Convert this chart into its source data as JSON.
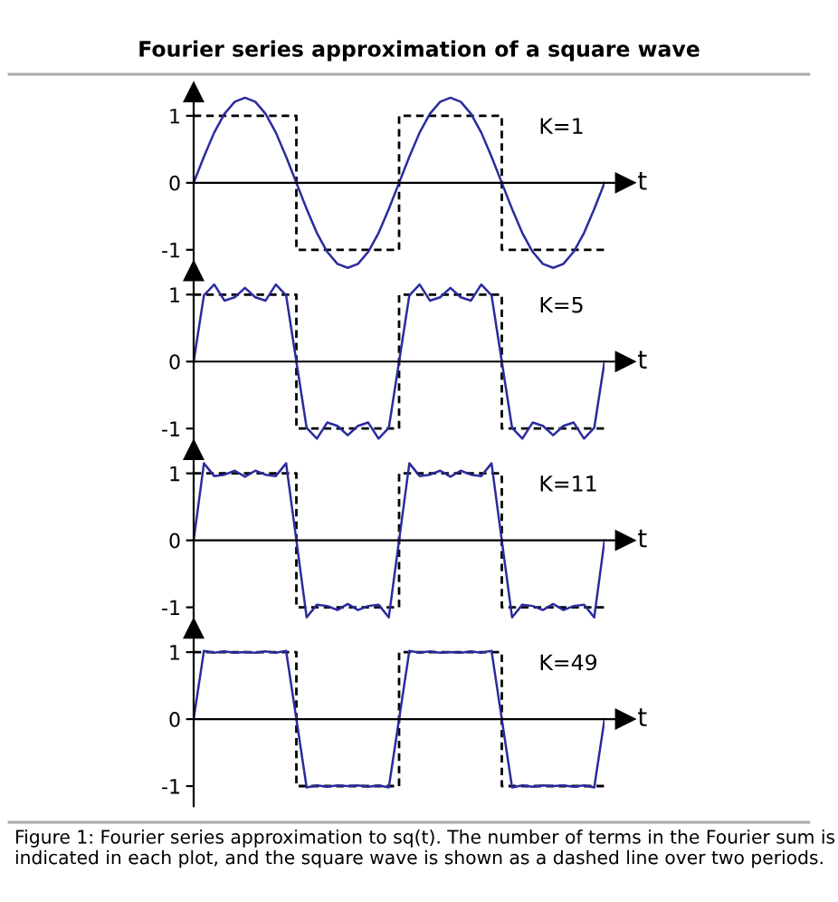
{
  "chart_data": [
    {
      "type": "line",
      "title": "Fourier series approximation of a square wave",
      "xlabel": "t",
      "annotations": [
        "K=1"
      ],
      "categories": [
        null,
        null,
        null,
        null,
        null,
        null,
        null,
        null,
        null,
        null,
        null,
        null,
        null,
        null,
        null,
        null,
        null,
        null,
        null,
        null,
        null,
        null,
        null,
        null,
        null,
        null,
        null,
        null,
        null,
        null,
        null,
        null,
        null,
        null,
        null,
        null,
        null,
        null,
        null,
        null,
        null
      ],
      "series": [
        {
          "type": "step",
          "color": "#000000",
          "line_style": "dashed",
          "values": [
            1,
            1,
            1,
            1,
            1,
            1,
            1,
            1,
            1,
            1,
            -1,
            -1,
            -1,
            -1,
            -1,
            -1,
            -1,
            -1,
            -1,
            -1,
            1,
            1,
            1,
            1,
            1,
            1,
            1,
            1,
            1,
            1,
            -1,
            -1,
            -1,
            -1,
            -1,
            -1,
            -1,
            -1,
            -1,
            -1,
            -1
          ]
        },
        {
          "color": "#2b2b9e",
          "line_style": "solid",
          "values": [
            0,
            0.39,
            0.75,
            1.03,
            1.21,
            1.27,
            1.21,
            1.03,
            0.75,
            0.39,
            0,
            -0.39,
            -0.75,
            -1.03,
            -1.21,
            -1.27,
            -1.21,
            -1.03,
            -0.75,
            -0.39,
            0,
            0.39,
            0.75,
            1.03,
            1.21,
            1.27,
            1.21,
            1.03,
            0.75,
            0.39,
            0,
            -0.39,
            -0.75,
            -1.03,
            -1.21,
            -1.27,
            -1.21,
            -1.03,
            -0.75,
            -0.39,
            0
          ]
        }
      ],
      "ylim": [
        -1.3,
        1.35
      ],
      "yticks": [
        -1,
        0,
        1
      ],
      "tick_labels": "y"
    },
    {
      "type": "line",
      "xlabel": "t",
      "annotations": [
        "K=5"
      ],
      "categories": [
        null,
        null,
        null,
        null,
        null,
        null,
        null,
        null,
        null,
        null,
        null,
        null,
        null,
        null,
        null,
        null,
        null,
        null,
        null,
        null,
        null,
        null,
        null,
        null,
        null,
        null,
        null,
        null,
        null,
        null,
        null,
        null,
        null,
        null,
        null,
        null,
        null,
        null,
        null,
        null,
        null
      ],
      "series": [
        {
          "type": "step",
          "color": "#000000",
          "line_style": "dashed",
          "values": [
            1,
            1,
            1,
            1,
            1,
            1,
            1,
            1,
            1,
            1,
            -1,
            -1,
            -1,
            -1,
            -1,
            -1,
            -1,
            -1,
            -1,
            -1,
            1,
            1,
            1,
            1,
            1,
            1,
            1,
            1,
            1,
            1,
            -1,
            -1,
            -1,
            -1,
            -1,
            -1,
            -1,
            -1,
            -1,
            -1,
            -1
          ]
        },
        {
          "color": "#2b2b9e",
          "line_style": "solid",
          "values": [
            0,
            0.99,
            1.15,
            0.91,
            0.96,
            1.1,
            0.96,
            0.91,
            1.15,
            0.99,
            0,
            -0.99,
            -1.15,
            -0.91,
            -0.96,
            -1.1,
            -0.96,
            -0.91,
            -1.15,
            -0.99,
            0,
            0.99,
            1.15,
            0.91,
            0.96,
            1.1,
            0.96,
            0.91,
            1.15,
            0.99,
            0,
            -0.99,
            -1.15,
            -0.91,
            -0.96,
            -1.1,
            -0.96,
            -0.91,
            -1.15,
            -0.99,
            0
          ]
        }
      ],
      "ylim": [
        -1.3,
        1.35
      ],
      "yticks": [
        -1,
        0,
        1
      ],
      "tick_labels": "y"
    },
    {
      "type": "line",
      "xlabel": "t",
      "annotations": [
        "K=11"
      ],
      "categories": [
        null,
        null,
        null,
        null,
        null,
        null,
        null,
        null,
        null,
        null,
        null,
        null,
        null,
        null,
        null,
        null,
        null,
        null,
        null,
        null,
        null,
        null,
        null,
        null,
        null,
        null,
        null,
        null,
        null,
        null,
        null,
        null,
        null,
        null,
        null,
        null,
        null,
        null,
        null,
        null,
        null
      ],
      "series": [
        {
          "type": "step",
          "color": "#000000",
          "line_style": "dashed",
          "values": [
            1,
            1,
            1,
            1,
            1,
            1,
            1,
            1,
            1,
            1,
            -1,
            -1,
            -1,
            -1,
            -1,
            -1,
            -1,
            -1,
            -1,
            -1,
            1,
            1,
            1,
            1,
            1,
            1,
            1,
            1,
            1,
            1,
            -1,
            -1,
            -1,
            -1,
            -1,
            -1,
            -1,
            -1,
            -1,
            -1,
            -1
          ]
        },
        {
          "color": "#2b2b9e",
          "line_style": "solid",
          "values": [
            0,
            1.15,
            0.96,
            0.98,
            1.04,
            0.95,
            1.04,
            0.98,
            0.96,
            1.15,
            0,
            -1.15,
            -0.96,
            -0.98,
            -1.04,
            -0.95,
            -1.04,
            -0.98,
            -0.96,
            -1.15,
            0,
            1.15,
            0.96,
            0.98,
            1.04,
            0.95,
            1.04,
            0.98,
            0.96,
            1.15,
            0,
            -1.15,
            -0.96,
            -0.98,
            -1.04,
            -0.95,
            -1.04,
            -0.98,
            -0.96,
            -1.15,
            0
          ]
        }
      ],
      "ylim": [
        -1.3,
        1.35
      ],
      "yticks": [
        -1,
        0,
        1
      ],
      "tick_labels": "y"
    },
    {
      "type": "line",
      "xlabel": "t",
      "annotations": [
        "K=49",
        "Figure 1: Fourier series approximation to sq(t). The number of terms in the Fourier sum is indicated in each plot, and the square wave is shown as a dashed line over two periods."
      ],
      "categories": [
        null,
        null,
        null,
        null,
        null,
        null,
        null,
        null,
        null,
        null,
        null,
        null,
        null,
        null,
        null,
        null,
        null,
        null,
        null,
        null,
        null,
        null,
        null,
        null,
        null,
        null,
        null,
        null,
        null,
        null,
        null,
        null,
        null,
        null,
        null,
        null,
        null,
        null,
        null,
        null,
        null
      ],
      "series": [
        {
          "type": "step",
          "color": "#000000",
          "line_style": "dashed",
          "values": [
            1,
            1,
            1,
            1,
            1,
            1,
            1,
            1,
            1,
            1,
            -1,
            -1,
            -1,
            -1,
            -1,
            -1,
            -1,
            -1,
            -1,
            -1,
            1,
            1,
            1,
            1,
            1,
            1,
            1,
            1,
            1,
            1,
            -1,
            -1,
            -1,
            -1,
            -1,
            -1,
            -1,
            -1,
            -1,
            -1,
            -1
          ]
        },
        {
          "color": "#2b2b9e",
          "line_style": "solid",
          "values": [
            0,
            1.02,
            0.99,
            1.01,
            0.99,
            1.0,
            0.99,
            1.01,
            0.99,
            1.02,
            0,
            -1.02,
            -0.99,
            -1.01,
            -0.99,
            -1.0,
            -0.99,
            -1.01,
            -0.99,
            -1.02,
            0,
            1.02,
            0.99,
            1.01,
            0.99,
            1.0,
            0.99,
            1.01,
            0.99,
            1.02,
            0,
            -1.02,
            -0.99,
            -1.01,
            -0.99,
            -1.0,
            -0.99,
            -1.01,
            -0.99,
            -1.02,
            0
          ]
        }
      ],
      "ylim": [
        -1.3,
        1.35
      ],
      "yticks": [
        -1,
        0,
        1
      ],
      "tick_labels": "y"
    }
  ]
}
